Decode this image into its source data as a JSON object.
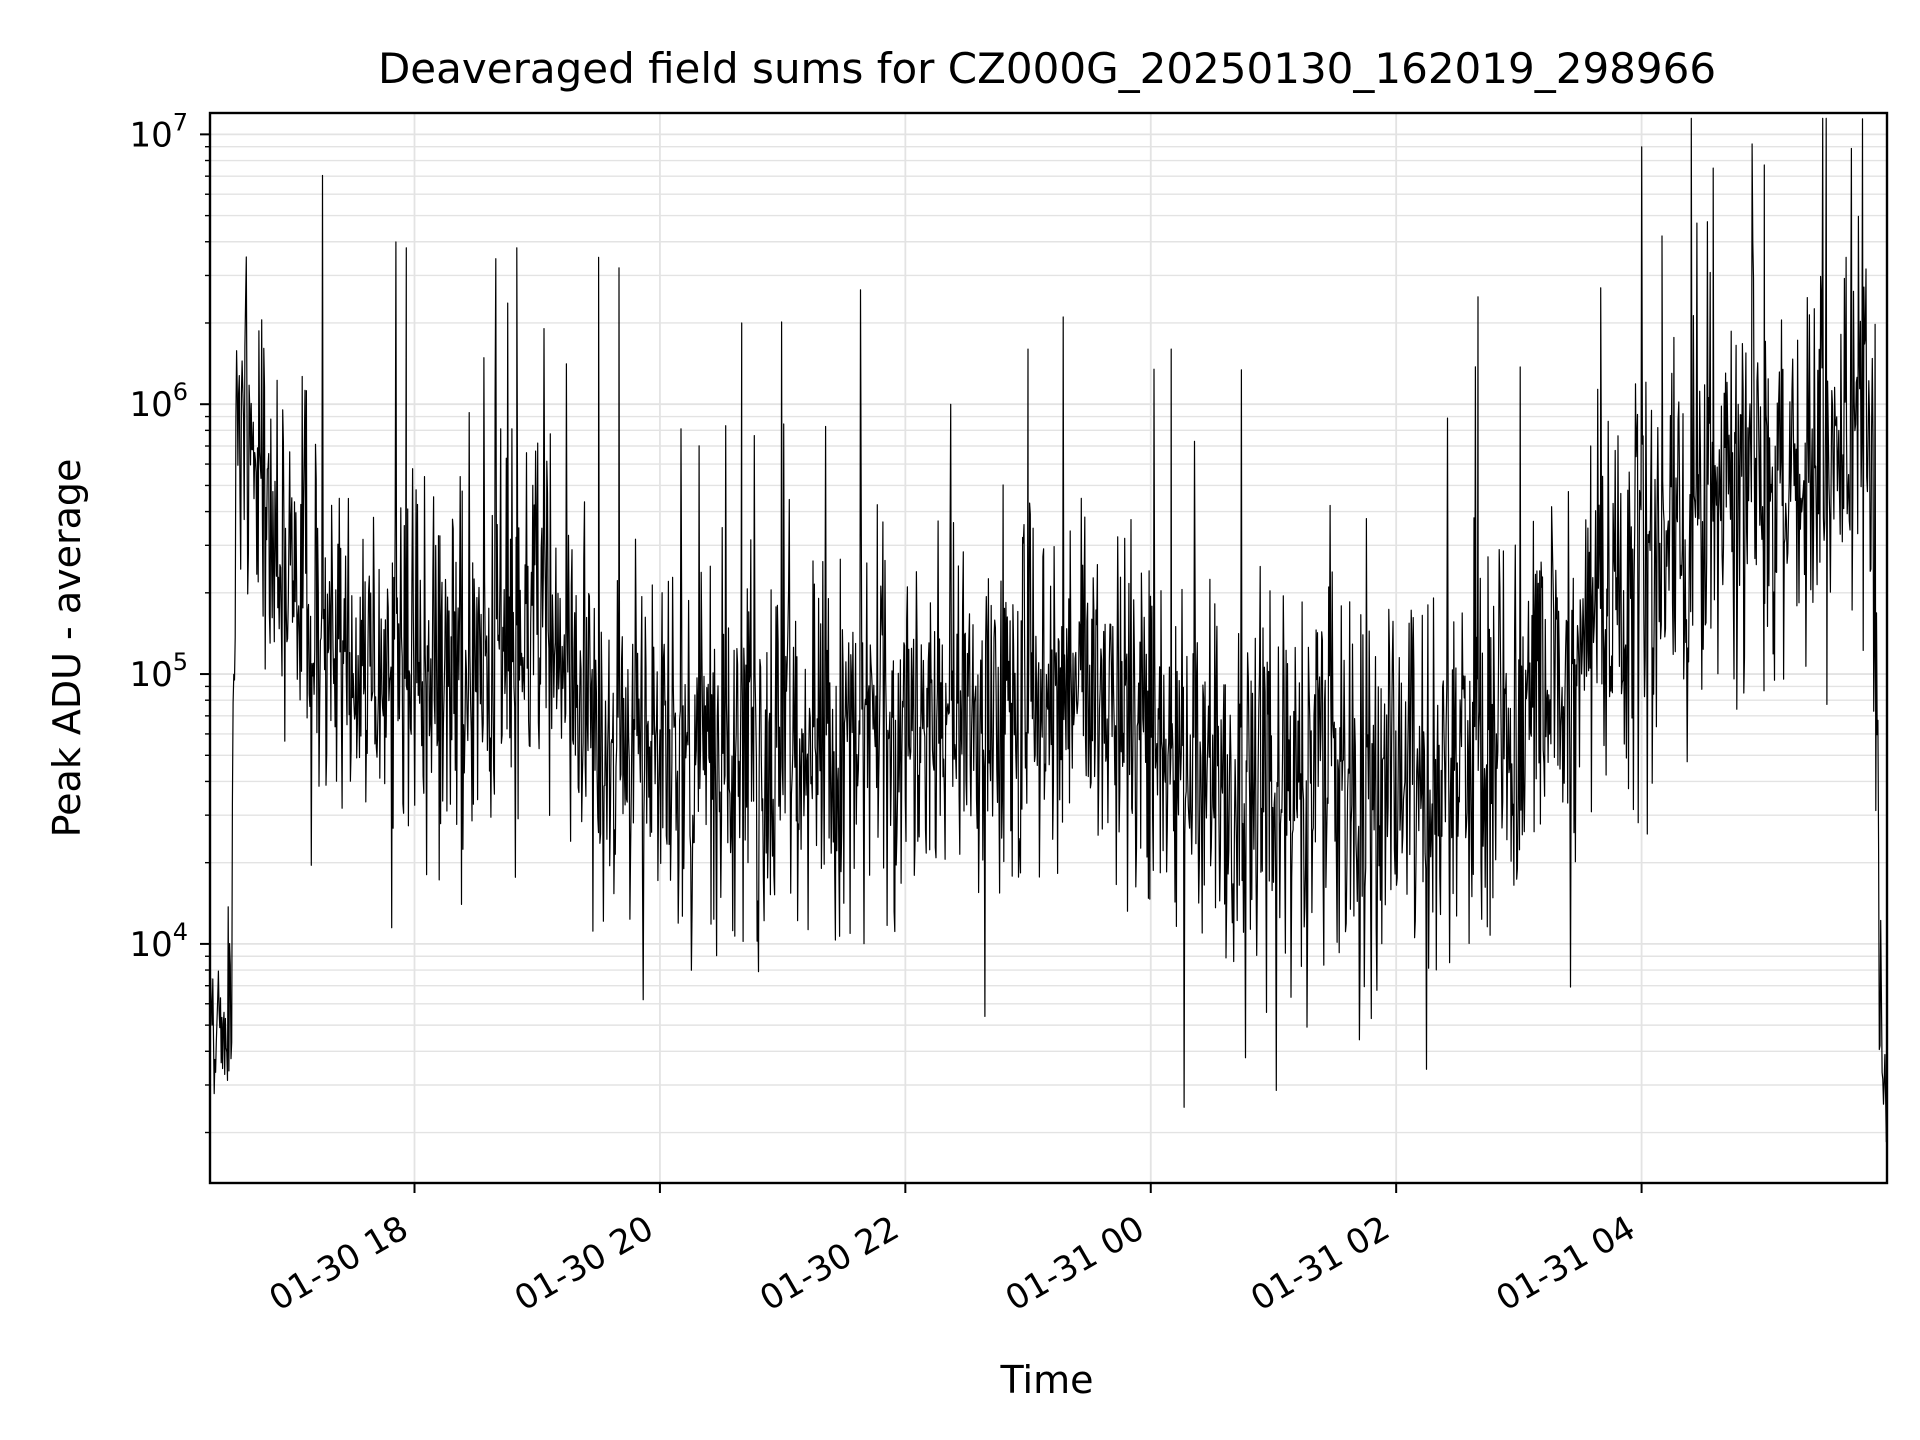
{
  "chart_data": {
    "type": "line",
    "title": "Deaveraged field sums for CZ000G_20250130_162019_298966",
    "xlabel": "Time",
    "ylabel": "Peak ADU - average",
    "yscale": "log",
    "ylim": [
      1300,
      12000000
    ],
    "xlim": [
      "2025-01-30 16:20",
      "2025-01-31 06:00"
    ],
    "grid": true,
    "line_color": "#000000",
    "x_ticks": [
      {
        "t": "2025-01-30 18:00",
        "label": "01-30 18"
      },
      {
        "t": "2025-01-30 20:00",
        "label": "01-30 20"
      },
      {
        "t": "2025-01-30 22:00",
        "label": "01-30 22"
      },
      {
        "t": "2025-01-31 00:00",
        "label": "01-31 00"
      },
      {
        "t": "2025-01-31 02:00",
        "label": "01-31 02"
      },
      {
        "t": "2025-01-31 04:00",
        "label": "01-31 04"
      }
    ],
    "y_ticks": [
      {
        "value": 10000,
        "base": "10",
        "exp": "4"
      },
      {
        "value": 100000,
        "base": "10",
        "exp": "5"
      },
      {
        "value": 1000000,
        "base": "10",
        "exp": "6"
      },
      {
        "value": 10000000,
        "base": "10",
        "exp": "7"
      }
    ],
    "series": [
      {
        "x": [
          "2025-01-30 16:20",
          "2025-01-30 16:22",
          "2025-01-30 16:24",
          "2025-01-30 16:26",
          "2025-01-30 16:28",
          "2025-01-30 16:30",
          "2025-01-30 16:32",
          "2025-01-30 16:34",
          "2025-01-30 16:36",
          "2025-01-30 16:38",
          "2025-01-30 16:40",
          "2025-01-30 16:45",
          "2025-01-30 16:50",
          "2025-01-30 17:00",
          "2025-01-30 17:10",
          "2025-01-30 17:20",
          "2025-01-30 17:30",
          "2025-01-30 17:40",
          "2025-01-30 17:50",
          "2025-01-30 18:00",
          "2025-01-30 18:30",
          "2025-01-30 19:00",
          "2025-01-30 19:30",
          "2025-01-30 20:00",
          "2025-01-30 20:30",
          "2025-01-30 21:00",
          "2025-01-30 21:30",
          "2025-01-30 22:00",
          "2025-01-30 22:30",
          "2025-01-30 23:00",
          "2025-01-30 23:30",
          "2025-01-31 00:00",
          "2025-01-31 00:30",
          "2025-01-31 01:00",
          "2025-01-31 01:30",
          "2025-01-31 02:00",
          "2025-01-31 02:30",
          "2025-01-31 03:00",
          "2025-01-31 03:30",
          "2025-01-31 04:00",
          "2025-01-31 04:30",
          "2025-01-31 05:00",
          "2025-01-31 05:30",
          "2025-01-31 05:50",
          "2025-01-31 05:54",
          "2025-01-31 05:56",
          "2025-01-31 05:58",
          "2025-01-31 06:00"
        ],
        "y": [
          6000,
          3500,
          7000,
          5000,
          4000,
          8000,
          150000,
          700000,
          1300000,
          1000000,
          700000,
          500000,
          300000,
          200000,
          150000,
          130000,
          120000,
          110000,
          100000,
          100000,
          100000,
          200000,
          60000,
          50000,
          55000,
          50000,
          50000,
          50000,
          70000,
          80000,
          90000,
          60000,
          50000,
          30000,
          35000,
          40000,
          45000,
          60000,
          120000,
          250000,
          400000,
          500000,
          600000,
          900000,
          300000,
          15000,
          4000,
          2500
        ],
        "noise_dex": 0.35,
        "spikes": [
          {
            "t": "2025-01-30 17:56",
            "y": 3800000
          },
          {
            "t": "2025-01-30 18:50",
            "y": 3800000
          },
          {
            "t": "2025-01-30 19:30",
            "y": 3500000
          },
          {
            "t": "2025-01-30 19:40",
            "y": 3200000
          },
          {
            "t": "2025-01-30 20:40",
            "y": 2000000
          },
          {
            "t": "2025-01-30 23:00",
            "y": 1600000
          },
          {
            "t": "2025-01-31 00:10",
            "y": 1600000
          },
          {
            "t": "2025-01-31 02:40",
            "y": 2500000
          },
          {
            "t": "2025-01-31 03:40",
            "y": 2700000
          },
          {
            "t": "2025-01-31 04:10",
            "y": 4200000
          },
          {
            "t": "2025-01-31 04:35",
            "y": 7500000
          },
          {
            "t": "2025-01-31 05:00",
            "y": 7700000
          },
          {
            "t": "2025-01-31 05:40",
            "y": 3500000
          }
        ]
      }
    ]
  }
}
